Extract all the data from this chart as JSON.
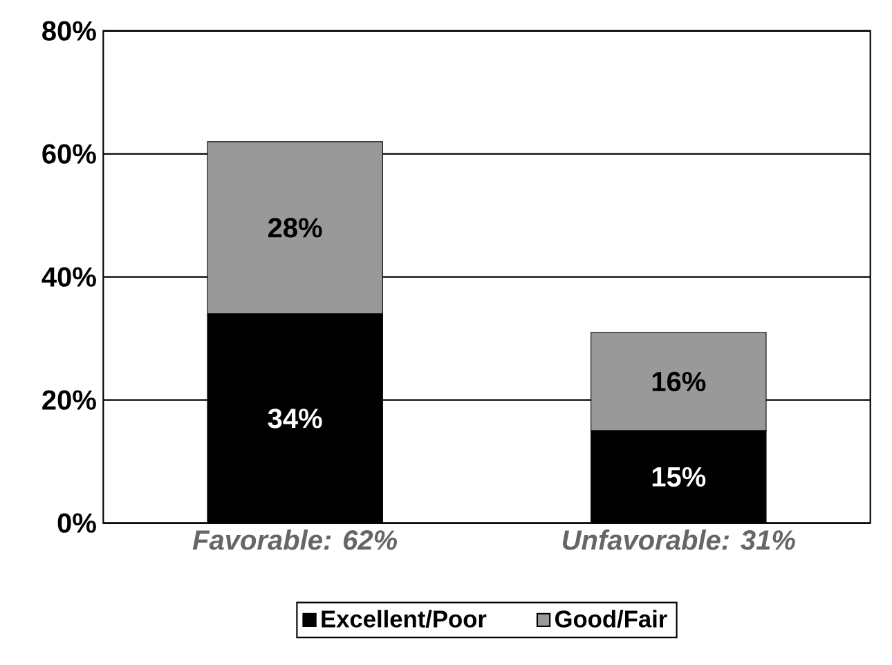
{
  "chart_data": {
    "type": "bar",
    "stacked": true,
    "categories": [
      "*Favorable: 62%*",
      "*Unfavorable: 31%*"
    ],
    "series": [
      {
        "name": "Excellent/Poor",
        "color": "#000000",
        "values": [
          34,
          15
        ],
        "value_labels": [
          "34%",
          "15%"
        ]
      },
      {
        "name": "Good/Fair",
        "color": "#999999",
        "values": [
          28,
          16
        ],
        "value_labels": [
          "28%",
          "16%"
        ]
      }
    ],
    "ylim": [
      0,
      80
    ],
    "yticks": [
      {
        "value": 0,
        "label": "0%"
      },
      {
        "value": 20,
        "label": "20%"
      },
      {
        "value": 40,
        "label": "40%"
      },
      {
        "value": 60,
        "label": "60%"
      },
      {
        "value": 80,
        "label": "80%"
      }
    ],
    "grid": "y",
    "legend": "bottom"
  }
}
